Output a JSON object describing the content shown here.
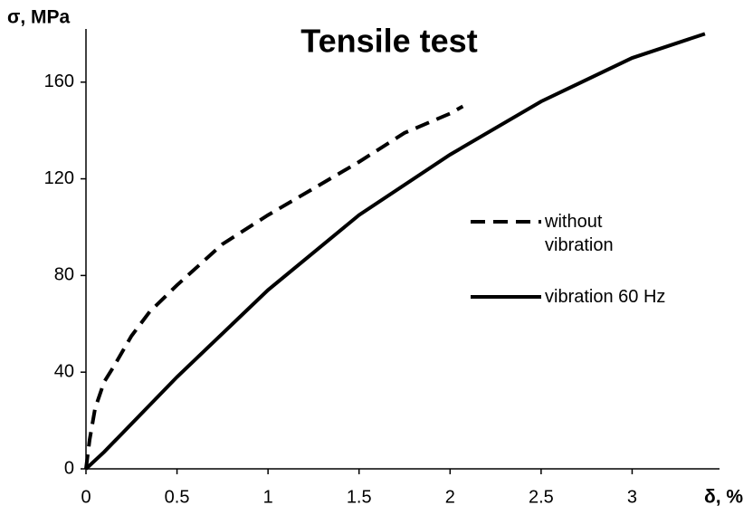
{
  "chart_data": {
    "type": "line",
    "title": "Tensile test",
    "x_label": "δ, %",
    "y_label": "σ, MPa",
    "xlim": [
      0,
      3.48
    ],
    "xticks": [
      0,
      0.5,
      1,
      1.5,
      2,
      2.5,
      3
    ],
    "ylim": [
      0,
      182
    ],
    "yticks": [
      0,
      40,
      80,
      120,
      160
    ],
    "legend": "right",
    "series": [
      {
        "name": "without vibration",
        "color": "#000000",
        "dash": "dashed",
        "x": [
          0,
          0.02,
          0.05,
          0.1,
          0.15,
          0.25,
          0.35,
          0.5,
          0.75,
          1,
          1.25,
          1.5,
          1.75,
          2,
          2.07
        ],
        "values": [
          0,
          12,
          25,
          36,
          42,
          55,
          65,
          76,
          93,
          105,
          116,
          127,
          139,
          147,
          150
        ]
      },
      {
        "name": "vibration 60 Hz",
        "color": "#000000",
        "dash": "solid",
        "x": [
          0,
          0.1,
          0.5,
          1,
          1.5,
          2,
          2.5,
          3,
          3.4
        ],
        "values": [
          0,
          7,
          38,
          74,
          105,
          130,
          152,
          170,
          180
        ]
      }
    ]
  }
}
